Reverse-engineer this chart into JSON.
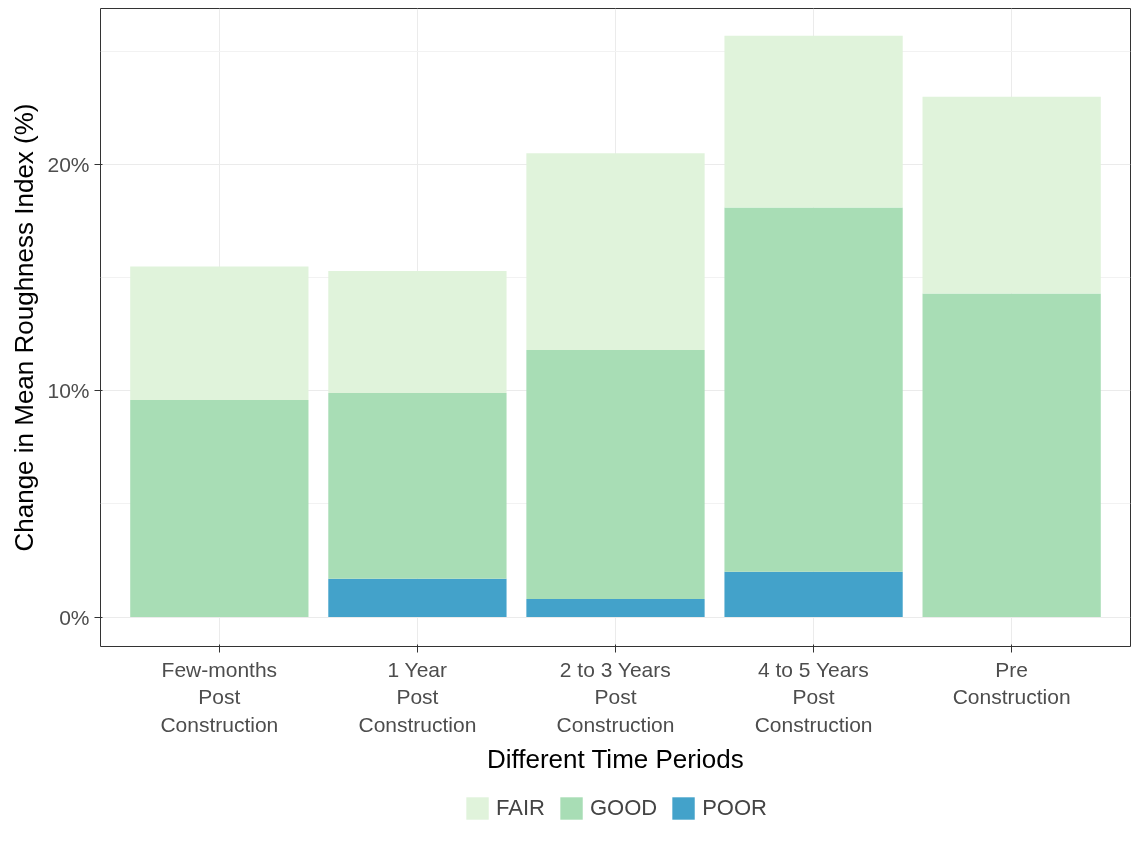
{
  "chart_data": {
    "type": "bar",
    "stacked": true,
    "xlabel": "Different Time Periods",
    "ylabel": "Change in Mean Roughness Index (%)",
    "categories": [
      "Few-months\nPost\nConstruction",
      "1 Year\nPost\nConstruction",
      "2 to 3 Years\nPost\nConstruction",
      "4 to 5 Years\nPost\nConstruction",
      "Pre\nConstruction"
    ],
    "series": [
      {
        "name": "POOR",
        "color": "#43a2ca",
        "values": [
          0,
          1.7,
          0.8,
          2.0,
          0
        ]
      },
      {
        "name": "GOOD",
        "color": "#a8ddb5",
        "values": [
          9.6,
          8.2,
          11.0,
          16.1,
          14.3
        ]
      },
      {
        "name": "FAIR",
        "color": "#e0f3db",
        "values": [
          5.9,
          5.4,
          8.7,
          7.6,
          8.7
        ]
      }
    ],
    "ylim": [
      -1.3,
      26.9
    ],
    "yticks": [
      {
        "value": 0,
        "label": "0%"
      },
      {
        "value": 10,
        "label": "10%"
      },
      {
        "value": 20,
        "label": "20%"
      }
    ],
    "grid": true,
    "legend": "bottom"
  }
}
